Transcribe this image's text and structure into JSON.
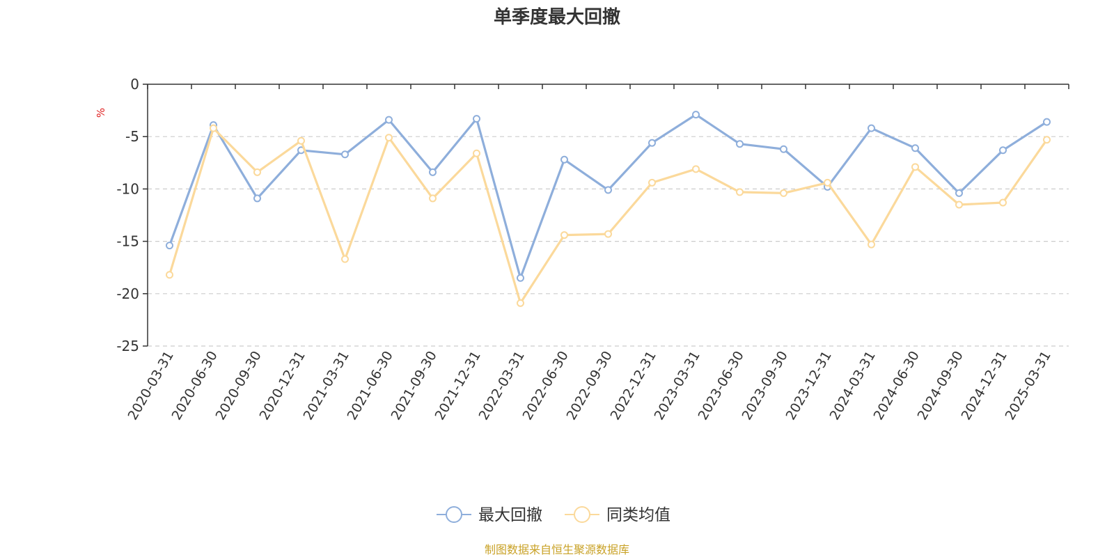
{
  "chart_data": {
    "type": "line",
    "title": "单季度最大回撤",
    "ylabel": "%",
    "ylim": [
      -25,
      0
    ],
    "yticks": [
      0,
      -5,
      -10,
      -15,
      -20,
      -25
    ],
    "grid": true,
    "legend_position": "bottom",
    "categories": [
      "2020-03-31",
      "2020-06-30",
      "2020-09-30",
      "2020-12-31",
      "2021-03-31",
      "2021-06-30",
      "2021-09-30",
      "2021-12-31",
      "2022-03-31",
      "2022-06-30",
      "2022-09-30",
      "2022-12-31",
      "2023-03-31",
      "2023-06-30",
      "2023-09-30",
      "2023-12-31",
      "2024-03-31",
      "2024-06-30",
      "2024-09-30",
      "2024-12-31",
      "2025-03-31"
    ],
    "series": [
      {
        "name": "最大回撤",
        "color": "#8eaedb",
        "values": [
          -15.4,
          -3.9,
          -10.9,
          -6.3,
          -6.7,
          -3.4,
          -8.4,
          -3.3,
          -18.5,
          -7.2,
          -10.1,
          -5.6,
          -2.9,
          -5.7,
          -6.2,
          -9.8,
          -4.2,
          -6.1,
          -10.4,
          -6.3,
          -3.6
        ]
      },
      {
        "name": "同类均值",
        "color": "#fbd99b",
        "values": [
          -18.2,
          -4.2,
          -8.4,
          -5.4,
          -16.7,
          -5.1,
          -10.9,
          -6.6,
          -20.9,
          -14.4,
          -14.3,
          -9.4,
          -8.1,
          -10.3,
          -10.4,
          -9.4,
          -15.3,
          -7.9,
          -11.5,
          -11.3,
          -5.3
        ]
      }
    ]
  },
  "footer": {
    "source": "制图数据来自恒生聚源数据库"
  }
}
